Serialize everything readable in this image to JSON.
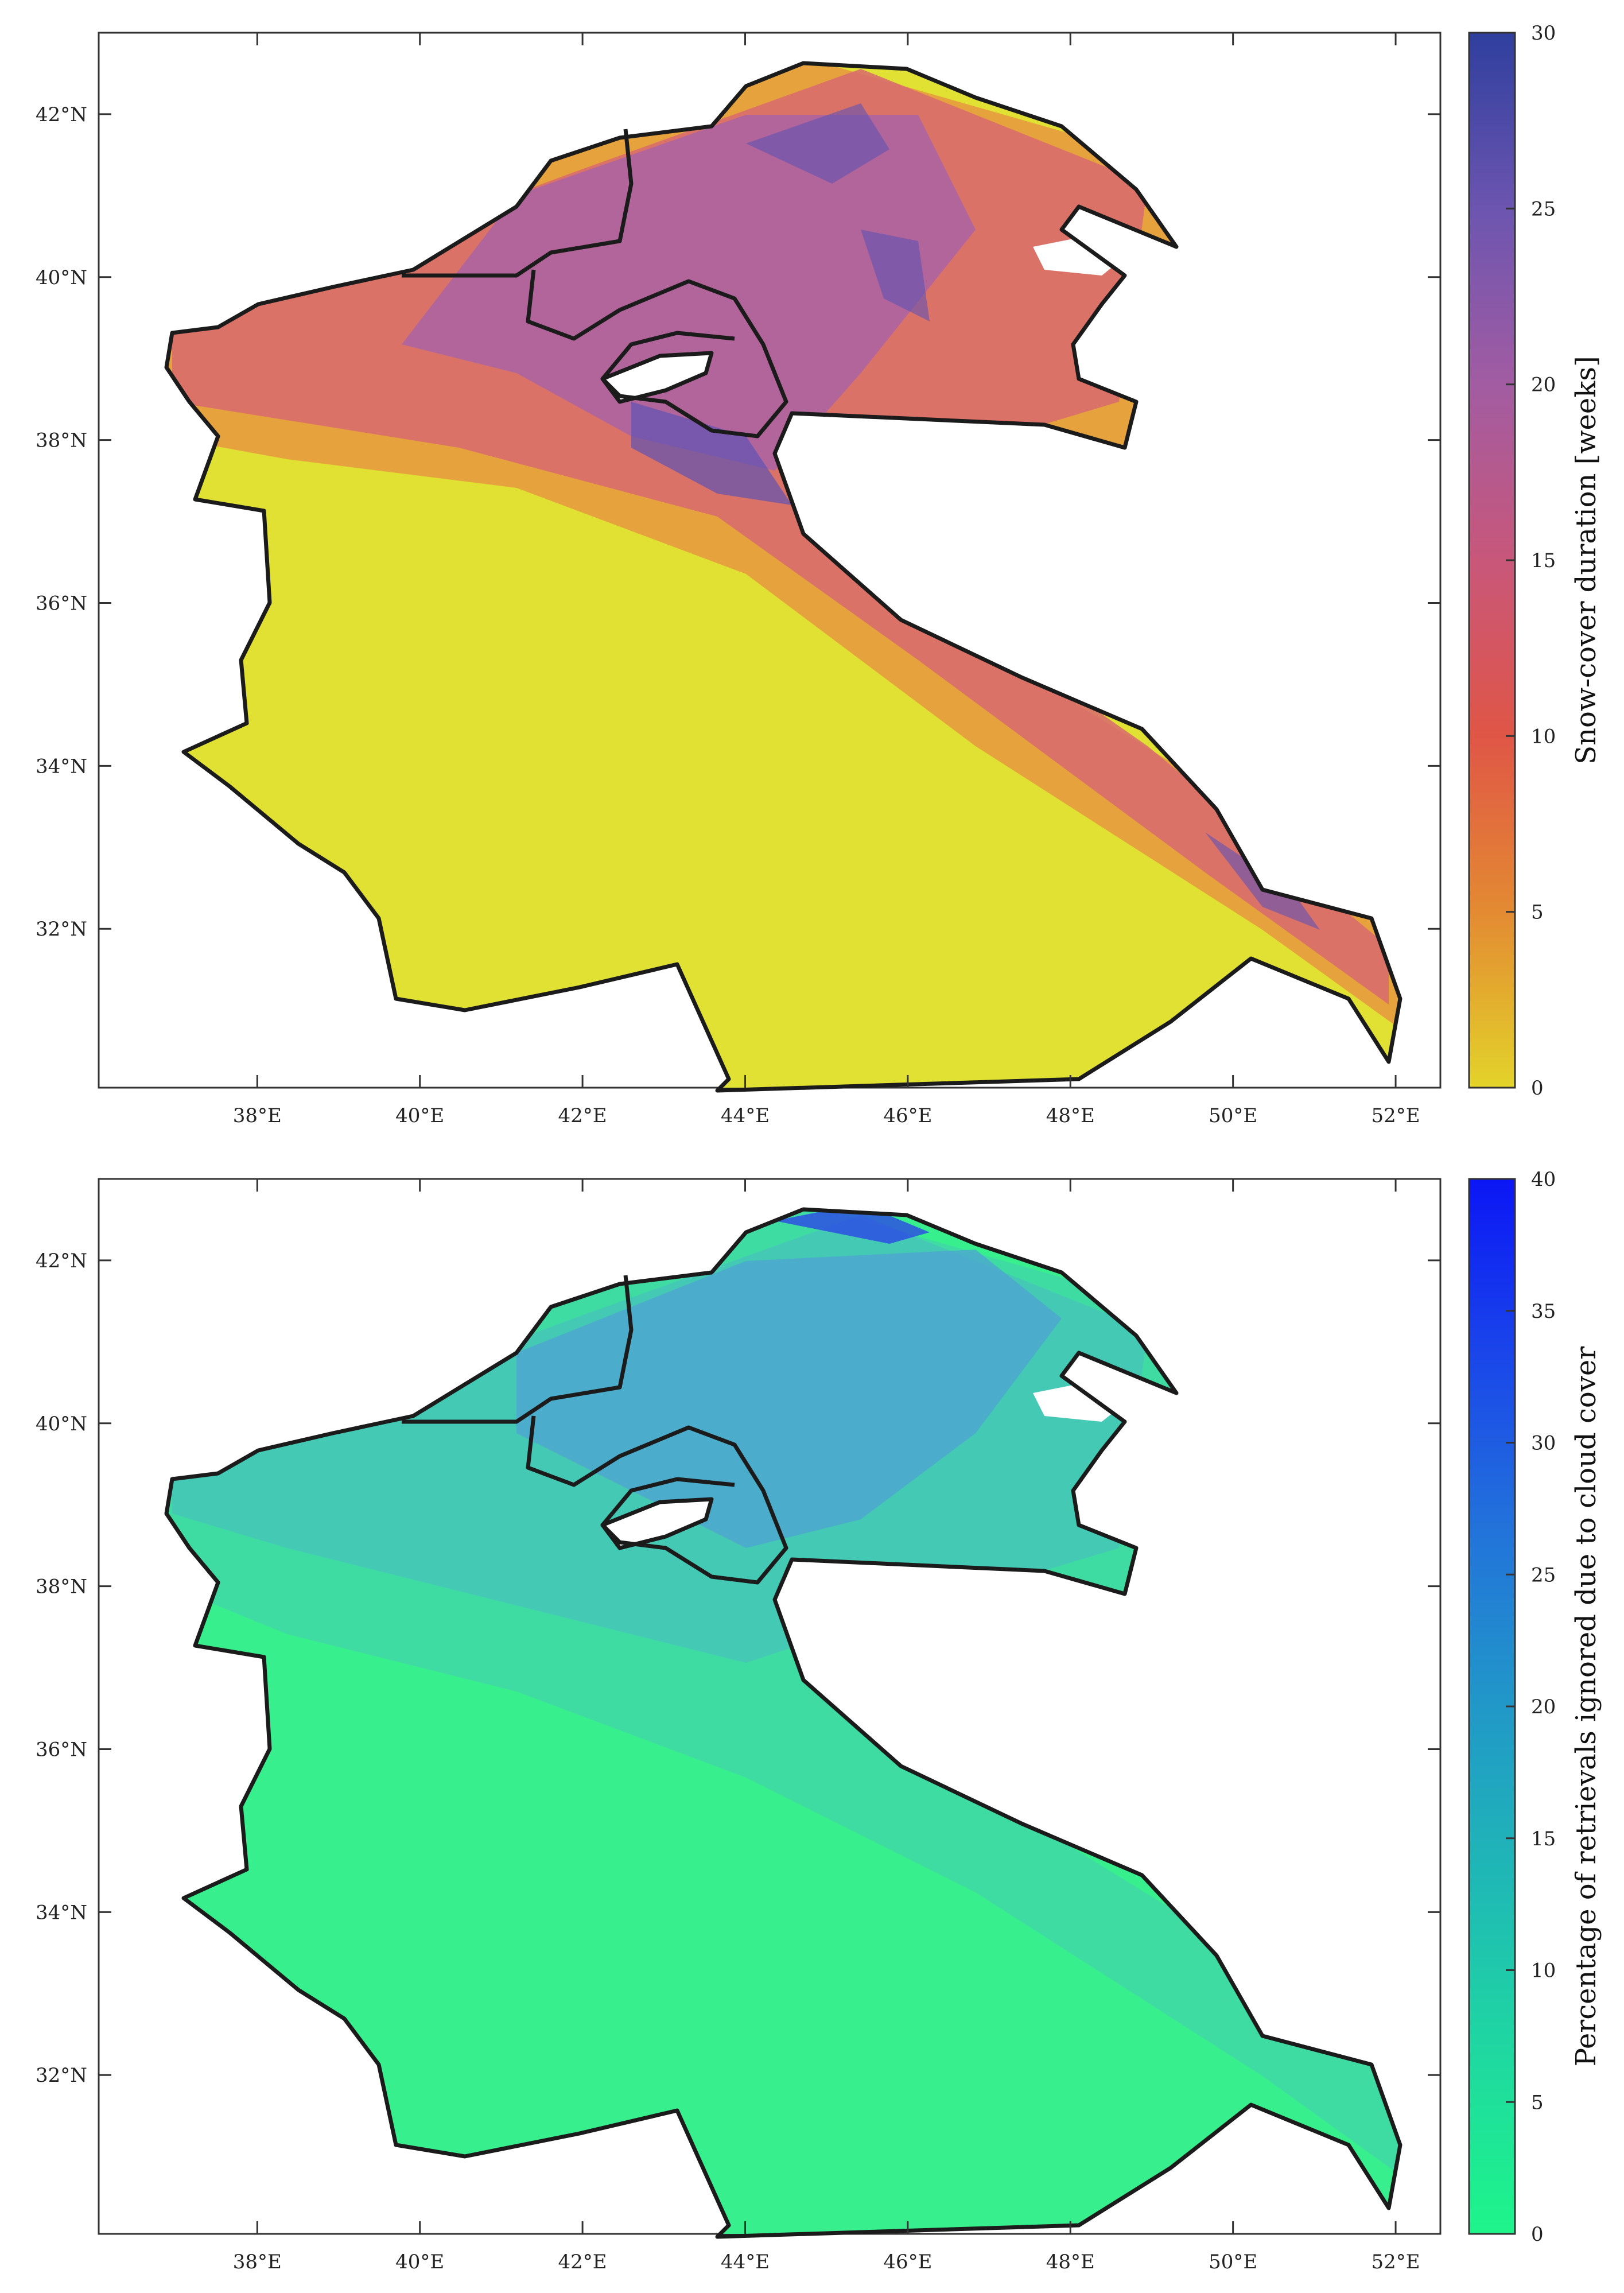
{
  "panels": [
    {
      "id": "snow-duration",
      "colorbar": {
        "label": "Snow-cover duration [weeks]",
        "ticks": [
          "0",
          "5",
          "10",
          "15",
          "20",
          "25",
          "30"
        ],
        "range": [
          0,
          30
        ],
        "colors": [
          "#e3d32a",
          "#e38a32",
          "#e05646",
          "#c8577a",
          "#a25ca2",
          "#6c55b0",
          "#2f3f9e"
        ]
      },
      "map": {
        "background": "#e1e133",
        "band_colors": [
          "#e79b3e",
          "#d86a6f",
          "#a861a8",
          "#5f52b4"
        ]
      },
      "x_ticks": [
        "38°E",
        "40°E",
        "42°E",
        "44°E",
        "46°E",
        "48°E",
        "50°E",
        "52°E"
      ],
      "y_ticks": [
        "42°N",
        "40°N",
        "38°N",
        "36°N",
        "34°N",
        "32°N"
      ]
    },
    {
      "id": "cloud-ignored",
      "colorbar": {
        "label": "Percentage of retrievals ignored due to cloud cover",
        "ticks": [
          "0",
          "5",
          "10",
          "15",
          "20",
          "25",
          "30",
          "35",
          "40"
        ],
        "range": [
          0,
          40
        ],
        "colors": [
          "#1ef58a",
          "#1fd9a0",
          "#1fb9b5",
          "#2198c8",
          "#2273da",
          "#1a46ea",
          "#0b16f5"
        ]
      },
      "map": {
        "background": "#37f08d",
        "band_colors": [
          "#3fd9a5",
          "#45c5b8",
          "#4f9fd4",
          "#2c47e6"
        ]
      },
      "x_ticks": [
        "38°E",
        "40°E",
        "42°E",
        "44°E",
        "46°E",
        "48°E",
        "50°E",
        "52°E"
      ],
      "y_ticks": [
        "42°N",
        "40°N",
        "38°N",
        "36°N",
        "34°N",
        "32°N"
      ]
    }
  ]
}
